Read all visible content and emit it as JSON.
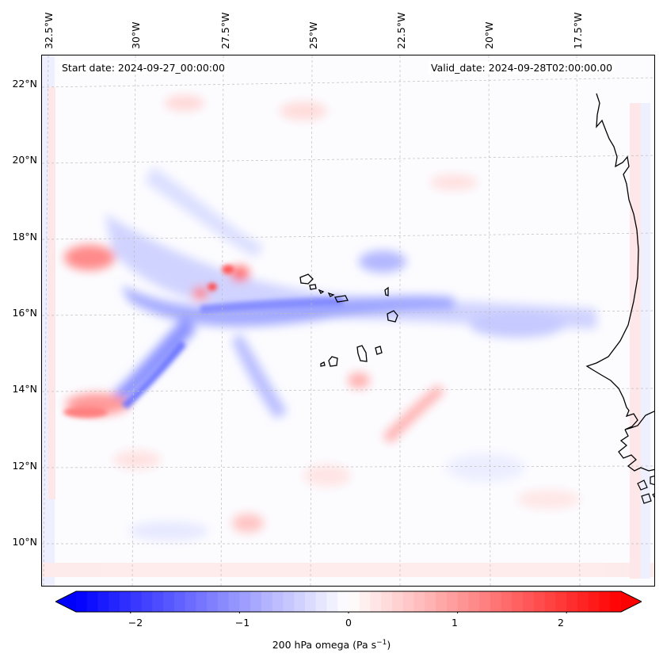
{
  "map": {
    "start_date": "Start date: 2024-09-27_00:00:00",
    "valid_date": "Valid_date: 2024-09-28T02:00:00.00",
    "variable": "200 hPa omega",
    "units_label": "200 hPa omega (Pa s",
    "units_sup": "−1",
    "units_close": ")",
    "lon_labels": [
      "32.5°W",
      "30°W",
      "27.5°W",
      "25°W",
      "22.5°W",
      "20°W",
      "17.5°W"
    ],
    "lat_labels": [
      "22°N",
      "20°N",
      "18°N",
      "16°N",
      "14°N",
      "12°N",
      "10°N"
    ],
    "colors": {
      "negative": "#0000ff",
      "positive": "#ff0000",
      "coast": "#000000",
      "grid": "#c8c8c8"
    }
  },
  "colorbar": {
    "min": -2.5,
    "max": 2.5,
    "ticks": [
      "−2",
      "−1",
      "0",
      "1",
      "2"
    ],
    "tick_values": [
      -2,
      -1,
      0,
      1,
      2
    ],
    "levels": 50
  }
}
